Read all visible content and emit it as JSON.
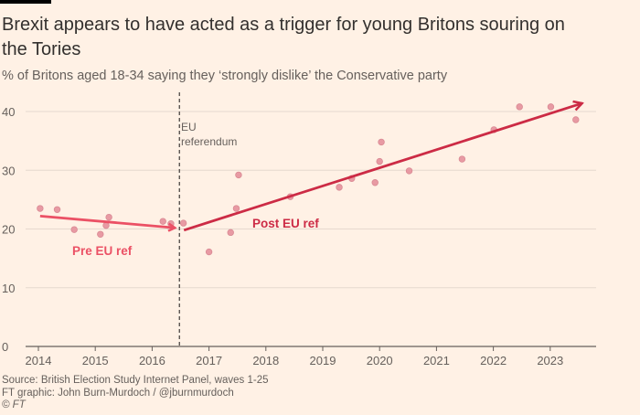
{
  "title": "Brexit appears to have acted as a trigger for young Britons souring on the Tories",
  "subtitle": "% of Britons aged 18-34 saying they ‘strongly dislike’ the Conservative party",
  "footer": {
    "source": "Source: British Election Study Internet Panel, waves 1-25",
    "credit": "FT graphic: John Burn-Murdoch / @jburnmurdoch",
    "copyright": "© FT"
  },
  "chart_data": {
    "type": "scatter",
    "title": "Brexit appears to have acted as a trigger for young Britons souring on the Tories",
    "subtitle": "% of Britons aged 18-34 saying they ‘strongly dislike’ the Conservative party",
    "xlabel": "",
    "ylabel": "",
    "xlim": [
      2014,
      2023.8
    ],
    "ylim": [
      0,
      40
    ],
    "x_ticks": [
      "2014",
      "2015",
      "2016",
      "2017",
      "2018",
      "2019",
      "2020",
      "2021",
      "2022",
      "2023"
    ],
    "y_ticks": [
      "0",
      "10",
      "20",
      "30",
      "40"
    ],
    "grid": "horizontal",
    "colors": {
      "points": "#e89aa3",
      "pre_arrow": "#eb5165",
      "post_arrow": "#cc2b45",
      "background": "#fff1e5"
    },
    "points": [
      {
        "x": 2014.03,
        "y": 23.5
      },
      {
        "x": 2014.33,
        "y": 23.3
      },
      {
        "x": 2014.63,
        "y": 19.9
      },
      {
        "x": 2015.09,
        "y": 19.1
      },
      {
        "x": 2015.19,
        "y": 20.6
      },
      {
        "x": 2015.24,
        "y": 22.0
      },
      {
        "x": 2016.19,
        "y": 21.3
      },
      {
        "x": 2016.33,
        "y": 20.9
      },
      {
        "x": 2016.55,
        "y": 21.0
      },
      {
        "x": 2017.0,
        "y": 16.1
      },
      {
        "x": 2017.38,
        "y": 19.4
      },
      {
        "x": 2017.48,
        "y": 23.5
      },
      {
        "x": 2017.52,
        "y": 29.2
      },
      {
        "x": 2018.43,
        "y": 25.5
      },
      {
        "x": 2019.29,
        "y": 27.1
      },
      {
        "x": 2019.51,
        "y": 28.6
      },
      {
        "x": 2019.92,
        "y": 27.9
      },
      {
        "x": 2020.0,
        "y": 31.5
      },
      {
        "x": 2020.03,
        "y": 34.8
      },
      {
        "x": 2020.52,
        "y": 29.9
      },
      {
        "x": 2021.45,
        "y": 31.9
      },
      {
        "x": 2022.01,
        "y": 36.9
      },
      {
        "x": 2022.46,
        "y": 40.8
      },
      {
        "x": 2023.01,
        "y": 40.8
      },
      {
        "x": 2023.45,
        "y": 38.6
      }
    ],
    "trends": [
      {
        "name": "Pre EU ref",
        "from": {
          "x": 2014.03,
          "y": 22.2
        },
        "to": {
          "x": 2016.4,
          "y": 20.2
        }
      },
      {
        "name": "Post EU ref",
        "from": {
          "x": 2016.56,
          "y": 19.8
        },
        "to": {
          "x": 2023.56,
          "y": 41.4
        }
      }
    ],
    "reference_line": {
      "x": 2016.48,
      "label_line1": "EU",
      "label_line2": "referendum"
    }
  }
}
